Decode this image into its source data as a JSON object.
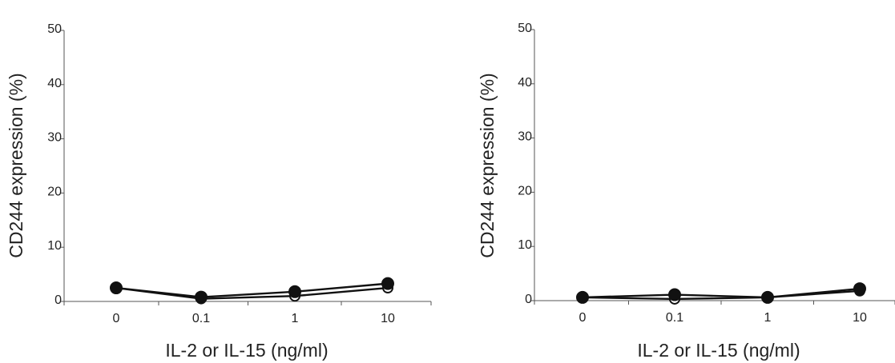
{
  "chart_data": [
    {
      "type": "line",
      "xlabel": "IL-2 or IL-15 (ng/ml)",
      "ylabel": "CD244 expression (%)",
      "categories": [
        "0",
        "0.1",
        "1",
        "10"
      ],
      "ylim": [
        0,
        50
      ],
      "yticks": [
        "0",
        "10",
        "20",
        "30",
        "40",
        "50"
      ],
      "grid": false,
      "series": [
        {
          "marker": "open-circle",
          "color": "#111111",
          "values": [
            2.5,
            0.5,
            1.0,
            2.5
          ]
        },
        {
          "marker": "filled-circle",
          "color": "#111111",
          "values": [
            2.5,
            0.8,
            1.8,
            3.3
          ]
        }
      ]
    },
    {
      "type": "line",
      "xlabel": "IL-2 or IL-15 (ng/ml)",
      "ylabel": "CD244 expression (%)",
      "categories": [
        "0",
        "0.1",
        "1",
        "10"
      ],
      "ylim": [
        0,
        50
      ],
      "yticks": [
        "0",
        "10",
        "20",
        "30",
        "40",
        "50"
      ],
      "grid": false,
      "series": [
        {
          "marker": "open-circle",
          "color": "#111111",
          "values": [
            0.6,
            0.3,
            0.6,
            1.8
          ]
        },
        {
          "marker": "filled-circle",
          "color": "#111111",
          "values": [
            0.6,
            1.1,
            0.6,
            2.2
          ]
        }
      ]
    }
  ]
}
